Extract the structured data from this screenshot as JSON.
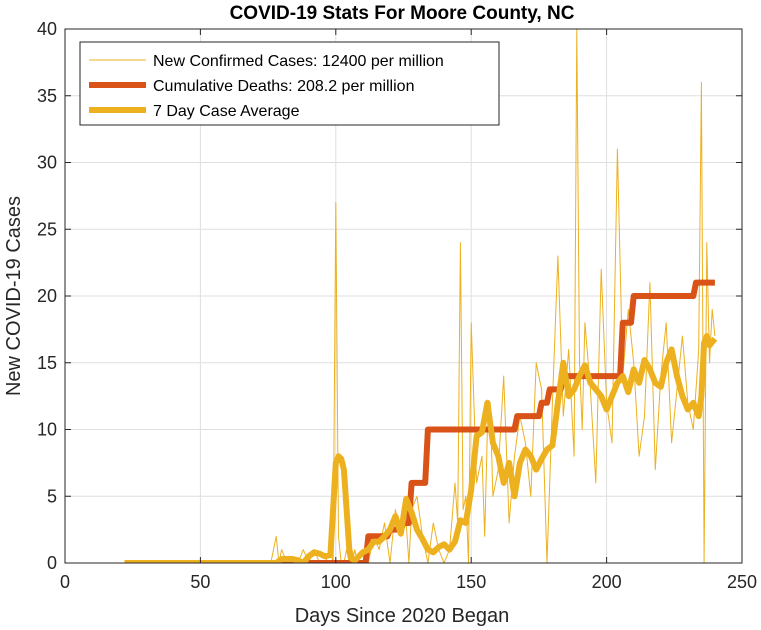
{
  "chart_data": {
    "type": "line",
    "title": "COVID-19 Stats For Moore County, NC",
    "xlabel": "Days Since 2020 Began",
    "ylabel": "New COVID-19 Cases",
    "xlim": [
      0,
      250
    ],
    "ylim": [
      0,
      40
    ],
    "xticks": [
      0,
      50,
      100,
      150,
      200,
      250
    ],
    "yticks": [
      0,
      5,
      10,
      15,
      20,
      25,
      30,
      35,
      40
    ],
    "grid": true,
    "legend_position": "top-left",
    "series": [
      {
        "name": "New Confirmed Cases: 12400 per million",
        "color": "#EDB120",
        "style": "thin",
        "x": [
          22,
          30,
          40,
          50,
          60,
          70,
          76,
          78,
          79,
          80,
          82,
          84,
          86,
          88,
          90,
          92,
          94,
          96,
          98,
          99,
          100,
          101,
          102,
          103,
          104,
          105,
          106,
          107,
          108,
          110,
          112,
          114,
          116,
          118,
          120,
          122,
          124,
          126,
          127,
          128,
          130,
          132,
          134,
          136,
          138,
          140,
          142,
          144,
          145,
          146,
          147,
          148,
          149,
          150,
          152,
          154,
          155,
          156,
          157,
          158,
          160,
          162,
          164,
          166,
          168,
          170,
          172,
          174,
          176,
          178,
          180,
          182,
          184,
          186,
          188,
          189,
          190,
          191,
          192,
          194,
          196,
          198,
          200,
          202,
          204,
          206,
          208,
          210,
          212,
          214,
          216,
          218,
          220,
          222,
          224,
          226,
          228,
          230,
          232,
          234,
          235,
          236,
          237,
          238,
          239,
          240
        ],
        "y": [
          0,
          0,
          0,
          0,
          0,
          0,
          0,
          2,
          0,
          1,
          0,
          0,
          0,
          1,
          0,
          1,
          0,
          0,
          1,
          0,
          27,
          2,
          0,
          0,
          1,
          0,
          0,
          1,
          0,
          0,
          0,
          2,
          1,
          3,
          0,
          4,
          2,
          3,
          0,
          4,
          5,
          2,
          0,
          3,
          1,
          0,
          1,
          6,
          3,
          24,
          4,
          5,
          0,
          18,
          6,
          8,
          2,
          10,
          12,
          5,
          7,
          14,
          3,
          8,
          11,
          9,
          5,
          15,
          13,
          0,
          12,
          23,
          11,
          16,
          8,
          40,
          15,
          10,
          18,
          13,
          6,
          22,
          12,
          9,
          31,
          14,
          19,
          15,
          8,
          11,
          21,
          7,
          14,
          18,
          9,
          13,
          17,
          12,
          10,
          16,
          36,
          0,
          24,
          15,
          19,
          17
        ]
      },
      {
        "name": "Cumulative Deaths: 208.2 per million",
        "color": "#D95319",
        "style": "thick",
        "x": [
          22,
          111,
          112,
          119,
          120,
          124,
          125,
          127,
          128,
          133,
          134,
          166,
          167,
          175,
          176,
          178,
          179,
          183,
          184,
          205,
          206,
          209,
          210,
          232,
          233,
          240
        ],
        "y": [
          0,
          0,
          2,
          2,
          2.5,
          2.5,
          3,
          3,
          6,
          6,
          10,
          10,
          11,
          11,
          12,
          12,
          13,
          13,
          14,
          14,
          18,
          18,
          20,
          20,
          21,
          21
        ]
      },
      {
        "name": "7 Day Case Average",
        "color": "#EDB120",
        "style": "thick",
        "x": [
          22,
          50,
          78,
          80,
          84,
          86,
          88,
          90,
          92,
          94,
          96,
          98,
          99,
          100,
          101,
          102,
          103,
          104,
          105,
          106,
          107,
          108,
          110,
          112,
          114,
          116,
          118,
          120,
          122,
          124,
          126,
          128,
          130,
          132,
          134,
          136,
          138,
          140,
          142,
          144,
          146,
          148,
          150,
          152,
          154,
          156,
          158,
          160,
          162,
          164,
          166,
          168,
          170,
          172,
          174,
          176,
          178,
          180,
          182,
          184,
          186,
          188,
          190,
          192,
          194,
          196,
          198,
          200,
          202,
          204,
          206,
          208,
          210,
          212,
          214,
          216,
          218,
          220,
          222,
          224,
          226,
          228,
          230,
          232,
          234,
          235,
          236,
          237,
          238,
          240
        ],
        "y": [
          0,
          0,
          0,
          0.3,
          0.3,
          0.2,
          0,
          0.5,
          0.8,
          0.7,
          0.5,
          0.6,
          4,
          7.5,
          8,
          7.8,
          7,
          4,
          1,
          0.3,
          0.2,
          0.4,
          0.8,
          1,
          1.6,
          1.6,
          2,
          2.5,
          3.5,
          2.2,
          4.8,
          3.8,
          2.5,
          1.8,
          1,
          0.8,
          1.2,
          1.4,
          1,
          1.6,
          3.2,
          3,
          5.5,
          9.5,
          9.8,
          12,
          9,
          8,
          6,
          7.5,
          5,
          7.5,
          8.5,
          8,
          7,
          7.8,
          8.5,
          8.8,
          12,
          15,
          12.5,
          13,
          14,
          14.8,
          13.5,
          13,
          12.5,
          11.5,
          12.5,
          13.5,
          14,
          12.8,
          14.5,
          13.5,
          15.2,
          14.5,
          13.5,
          13.2,
          15,
          16,
          14,
          12.5,
          11.5,
          12,
          11,
          12.5,
          16.5,
          17,
          16.3,
          16.8
        ]
      }
    ]
  }
}
